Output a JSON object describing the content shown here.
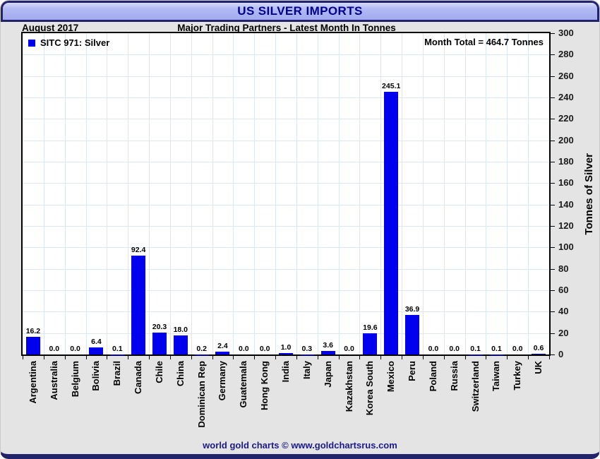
{
  "window": {
    "title": "US SILVER IMPORTS",
    "footer": "world gold charts © www.goldchartsrus.com"
  },
  "header": {
    "date_label": "August 2017",
    "subtitle": "Major Trading Partners - Latest Month In Tonnes"
  },
  "legend": {
    "label": "SITC 971: Silver",
    "swatch_color": "#0000ee"
  },
  "annotations": {
    "month_total": "Month Total = 464.7 Tonnes"
  },
  "chart_data": {
    "type": "bar",
    "title": "US SILVER IMPORTS",
    "subtitle": "Major Trading Partners - Latest Month In Tonnes",
    "period": "August 2017",
    "series_name": "SITC 971: Silver",
    "categories": [
      "Argentina",
      "Australia",
      "Belgium",
      "Bolivia",
      "Brazil",
      "Canada",
      "Chile",
      "China",
      "Dominican Rep",
      "Germany",
      "Guatemala",
      "Hong Kong",
      "India",
      "Italy",
      "Japan",
      "Kazakhstan",
      "Korea South",
      "Mexico",
      "Peru",
      "Poland",
      "Russia",
      "Switzerland",
      "Taiwan",
      "Turkey",
      "UK"
    ],
    "values": [
      16.2,
      0.0,
      0.0,
      6.4,
      0.1,
      92.4,
      20.3,
      18.0,
      0.2,
      2.4,
      0.0,
      0.0,
      1.0,
      0.3,
      3.6,
      0.0,
      19.6,
      245.1,
      36.9,
      0.0,
      0.0,
      0.1,
      0.1,
      0.0,
      0.6
    ],
    "xlabel": "",
    "ylabel": "Tonnes of Silver",
    "ylim": [
      0,
      300
    ],
    "ytick_step": 20,
    "yaxis_side": "right",
    "grid": true,
    "legend_position": "top-left",
    "bar_color": "#0000ee",
    "grid_color": "#dbe8f4",
    "month_total_value": "464.7"
  },
  "colors": {
    "frame_navy": "#23236b",
    "titlebar_fill": "#a9b1f1",
    "title_text": "#00008b",
    "body_gray": "#e4e4e4",
    "footer_text": "#1a1a8f"
  }
}
